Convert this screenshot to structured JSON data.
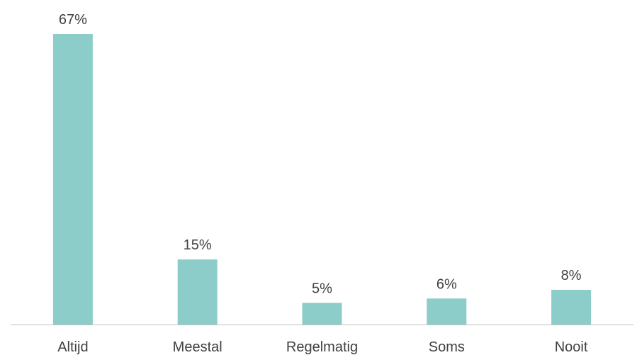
{
  "chart_data": {
    "type": "bar",
    "categories": [
      "Altijd",
      "Meestal",
      "Regelmatig",
      "Soms",
      "Nooit"
    ],
    "values": [
      67,
      15,
      5,
      6,
      8
    ],
    "data_labels": [
      "67%",
      "15%",
      "5%",
      "6%",
      "8%"
    ],
    "ylim": [
      0,
      67
    ],
    "grid": false,
    "legend": "none",
    "colors": {
      "bar": "#8ccdca",
      "axis": "#bfbfbf",
      "text": "#404040"
    }
  }
}
